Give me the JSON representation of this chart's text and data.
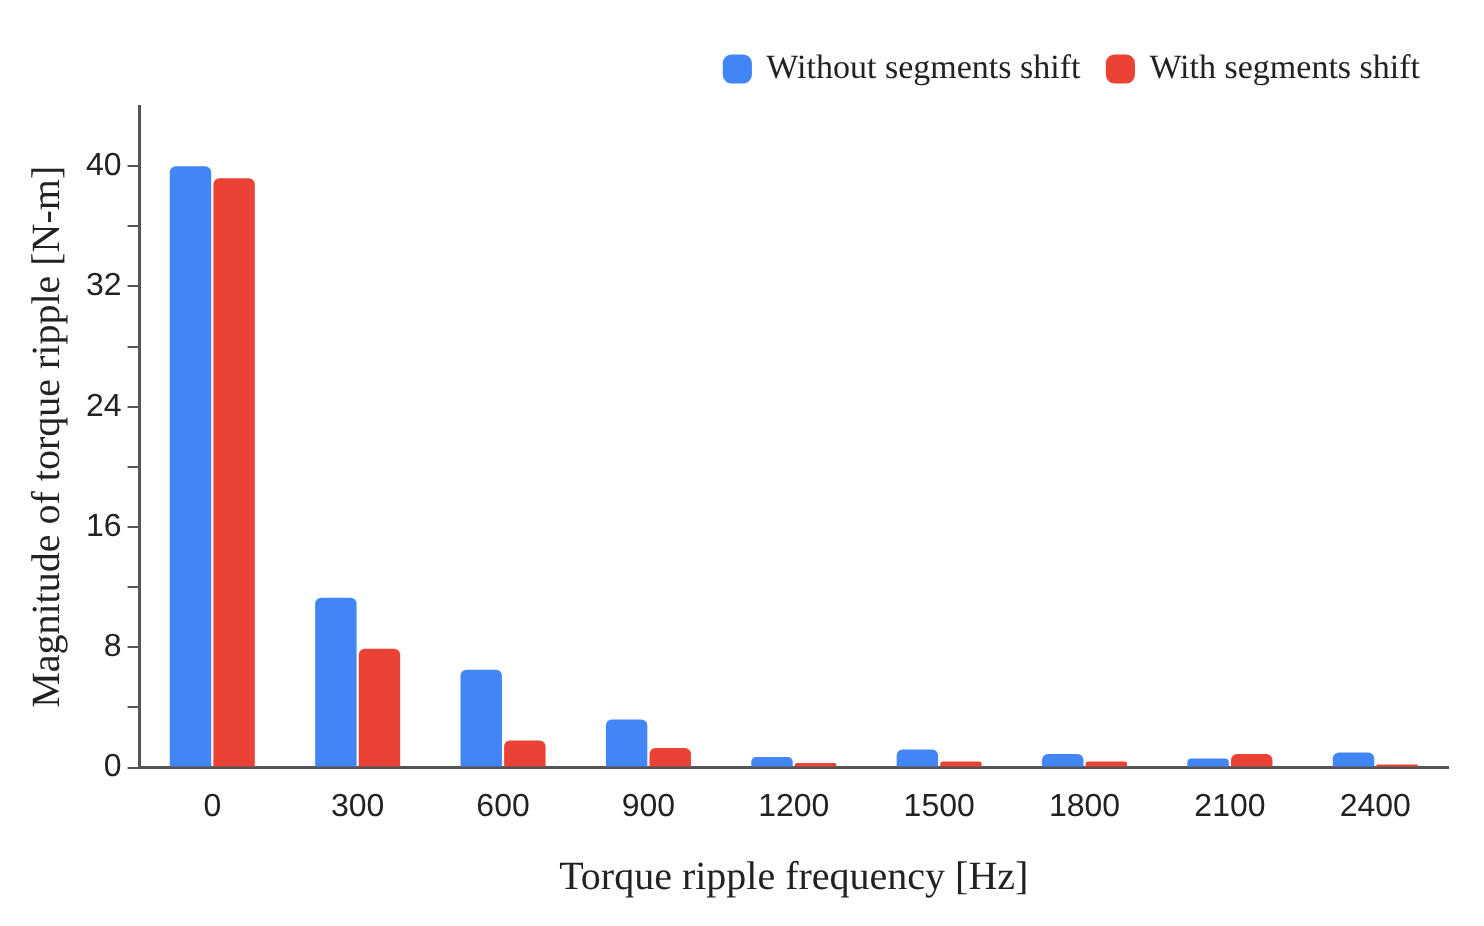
{
  "chart_data": {
    "type": "bar",
    "xlabel": "Torque ripple frequency [Hz]",
    "ylabel": "Magnitude of torque ripple [N-m]",
    "categories": [
      "0",
      "300",
      "600",
      "900",
      "1200",
      "1500",
      "1800",
      "2100",
      "2400"
    ],
    "series": [
      {
        "name": "Without segments shift",
        "color": "#4285f4",
        "values": [
          40,
          11.3,
          6.5,
          3.2,
          0.7,
          1.2,
          0.9,
          0.6,
          1.0
        ]
      },
      {
        "name": "With segments shift",
        "color": "#ea4335",
        "values": [
          39.2,
          7.9,
          1.8,
          1.3,
          0.3,
          0.4,
          0.4,
          0.9,
          0.2
        ]
      }
    ],
    "ylim": [
      0,
      44
    ],
    "yticks": [
      0,
      {
        "value": 4,
        "label": null
      },
      8,
      {
        "value": 12,
        "label": null
      },
      16,
      {
        "value": 20,
        "label": null
      },
      24,
      {
        "value": 28,
        "label": null
      },
      32,
      {
        "value": 36,
        "label": null
      },
      40
    ],
    "legend": "top right",
    "grid": false
  }
}
